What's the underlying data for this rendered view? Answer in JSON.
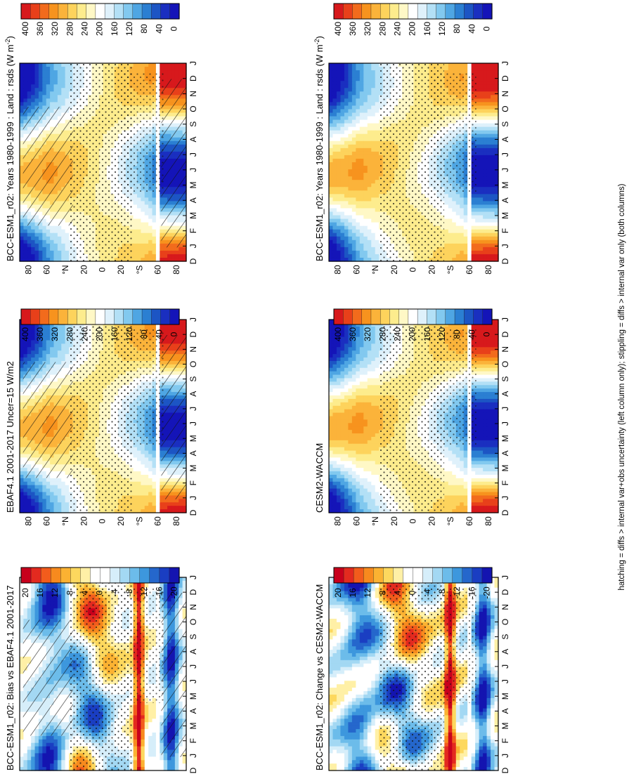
{
  "footer": "hatching = diffs > internal var+obs uncertainty (left column only); stippling = diffs > internal var only (both columns)",
  "abs_scale": {
    "labels": [
      "400",
      "360",
      "320",
      "280",
      "240",
      "200",
      "160",
      "120",
      "80",
      "40",
      "0"
    ]
  },
  "diff_scale": {
    "labels": [
      "20",
      "16",
      "12",
      "8",
      "4",
      "0",
      "-4",
      "-8",
      "-12",
      "-16",
      "-20"
    ]
  },
  "colors": {
    "abs": [
      "#d7191c",
      "#e8401a",
      "#f26b1c",
      "#f7931e",
      "#fbb33a",
      "#fdd35c",
      "#fdec8d",
      "#fff8c6",
      "#ffffff",
      "#dff1fb",
      "#b3e0f6",
      "#82c9ef",
      "#4fa6e3",
      "#2b7fd2",
      "#1c55c4",
      "#1a2fc0",
      "#1414b8"
    ],
    "diff": [
      "#c8001c",
      "#e32a1f",
      "#f25c1c",
      "#f78a1e",
      "#fbb232",
      "#fdd85e",
      "#fff0a6",
      "#ffffff",
      "#ffffff",
      "#d6eefa",
      "#a3d8f3",
      "#6cbcea",
      "#3d97dd",
      "#2567cc",
      "#1a3ec2",
      "#1414b0"
    ]
  },
  "panels": [
    {
      "title": "BCC-ESM1_r02: Years 1980-1999 : Land : rsds (W m$^{-2}$)",
      "title_display": "BCC-ESM1_r02: Years 1980-1999 : Land : rsds (W m",
      "unit_sup": "-2",
      "title_tail": ")"
    },
    {
      "title": "EBAF4.1 2001-2017 Uncer=15 W/m2"
    },
    {
      "title": "BCC-ESM1_r02: Bias vs EBAF4.1 2001-2017"
    },
    {
      "title": "BCC-ESM1_r02: Years 1980-1999 : Land : rsds (W m$^{-2}$)",
      "title_display": "BCC-ESM1_r02: Years 1980-1999 : Land : rsds (W m",
      "unit_sup": "-2",
      "title_tail": ")"
    },
    {
      "title": "CESM2-WACCM"
    },
    {
      "title": "BCC-ESM1_r02: Change vs CESM2-WACCM"
    }
  ],
  "chart_data": [
    {
      "type": "heatmap",
      "panel": 0,
      "title": "BCC-ESM1_r02: Years 1980-1999 : Land : rsds (W m-2)",
      "x_ticks": [
        "D",
        "J",
        "F",
        "M",
        "A",
        "M",
        "J",
        "J",
        "A",
        "S",
        "O",
        "N",
        "D",
        "J"
      ],
      "y_ticks": [
        "80",
        "60",
        "°N",
        "20",
        "0",
        "20",
        "°S",
        "60",
        "80"
      ],
      "scale": [
        0,
        400
      ],
      "colorbar_ticks": [
        400,
        360,
        320,
        280,
        240,
        200,
        160,
        120,
        80,
        40,
        0
      ]
    },
    {
      "type": "heatmap",
      "panel": 1,
      "title": "EBAF4.1 2001-2017 Uncer=15 W/m2",
      "x_ticks": [
        "D",
        "J",
        "F",
        "M",
        "A",
        "M",
        "J",
        "J",
        "A",
        "S",
        "O",
        "N",
        "D",
        "J"
      ],
      "y_ticks": [
        "80",
        "60",
        "°N",
        "20",
        "0",
        "20",
        "°S",
        "60",
        "80"
      ],
      "scale": [
        0,
        400
      ],
      "colorbar_ticks": [
        400,
        360,
        320,
        280,
        240,
        200,
        160,
        120,
        80,
        40,
        0
      ]
    },
    {
      "type": "heatmap",
      "panel": 2,
      "title": "BCC-ESM1_r02: Bias vs EBAF4.1 2001-2017",
      "x_ticks": [
        "D",
        "J",
        "F",
        "M",
        "A",
        "M",
        "J",
        "J",
        "A",
        "S",
        "O",
        "N",
        "D",
        "J"
      ],
      "y_ticks": [
        "80",
        "60",
        "°N",
        "20",
        "0",
        "20",
        "°S",
        "60",
        "80"
      ],
      "scale": [
        -20,
        20
      ],
      "colorbar_ticks": [
        20,
        16,
        12,
        8,
        4,
        0,
        -4,
        -8,
        -12,
        -16,
        -20
      ]
    },
    {
      "type": "heatmap",
      "panel": 3,
      "title": "BCC-ESM1_r02: Years 1980-1999 : Land : rsds (W m-2)",
      "x_ticks": [
        "D",
        "J",
        "F",
        "M",
        "A",
        "M",
        "J",
        "J",
        "A",
        "S",
        "O",
        "N",
        "D",
        "J"
      ],
      "y_ticks": [
        "80",
        "60",
        "°N",
        "20",
        "0",
        "20",
        "°S",
        "60",
        "80"
      ],
      "scale": [
        0,
        400
      ],
      "colorbar_ticks": [
        400,
        360,
        320,
        280,
        240,
        200,
        160,
        120,
        80,
        40,
        0
      ]
    },
    {
      "type": "heatmap",
      "panel": 4,
      "title": "CESM2-WACCM",
      "x_ticks": [
        "D",
        "J",
        "F",
        "M",
        "A",
        "M",
        "J",
        "J",
        "A",
        "S",
        "O",
        "N",
        "D",
        "J"
      ],
      "y_ticks": [
        "80",
        "60",
        "°N",
        "20",
        "0",
        "20",
        "°S",
        "60",
        "80"
      ],
      "scale": [
        0,
        400
      ],
      "colorbar_ticks": [
        400,
        360,
        320,
        280,
        240,
        200,
        160,
        120,
        80,
        40,
        0
      ]
    },
    {
      "type": "heatmap",
      "panel": 5,
      "title": "BCC-ESM1_r02: Change vs CESM2-WACCM",
      "x_ticks": [
        "D",
        "J",
        "F",
        "M",
        "A",
        "M",
        "J",
        "J",
        "A",
        "S",
        "O",
        "N",
        "D",
        "J"
      ],
      "y_ticks": [
        "80",
        "60",
        "°N",
        "20",
        "0",
        "20",
        "°S",
        "60",
        "80"
      ],
      "scale": [
        -20,
        20
      ],
      "colorbar_ticks": [
        20,
        16,
        12,
        8,
        4,
        0,
        -4,
        -8,
        -12,
        -16,
        -20
      ]
    }
  ]
}
